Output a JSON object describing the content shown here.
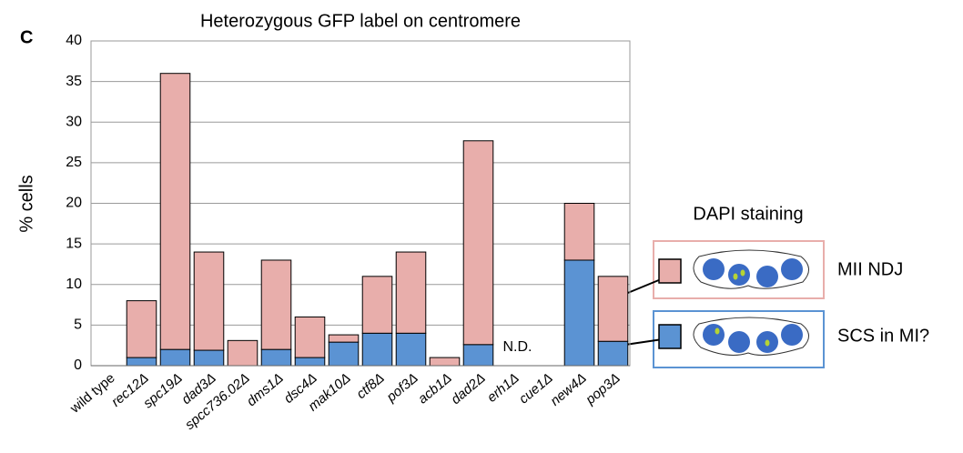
{
  "panel_label": "C",
  "chart_data": {
    "type": "stacked-bar",
    "title": "Heterozygous GFP label on centromere",
    "y_label": "% cells",
    "categories": [
      "wild type",
      "rec12Δ",
      "spc19Δ",
      "dad3Δ",
      "spcc736.02Δ",
      "dms1Δ",
      "dsc4Δ",
      "mak10Δ",
      "ctf8Δ",
      "pof3Δ",
      "acb1Δ",
      "dad2Δ",
      "erh1Δ",
      "cue1Δ",
      "new4Δ",
      "pop3Δ"
    ],
    "series": [
      {
        "name": "SCS in MI?",
        "color": "#5b93d3",
        "values": [
          0,
          1,
          2,
          1.9,
          0,
          2,
          1,
          2.9,
          4,
          4,
          0,
          2.6,
          null,
          0,
          13,
          3
        ]
      },
      {
        "name": "MII NDJ",
        "color": "#e8aeab",
        "values": [
          0,
          7,
          34,
          12.1,
          3.1,
          11,
          5,
          0.9,
          7,
          10,
          1,
          25.1,
          null,
          0,
          7,
          8
        ]
      }
    ],
    "ylim": [
      0,
      40
    ],
    "yticks": [
      0,
      5,
      10,
      15,
      20,
      25,
      30,
      35,
      40
    ],
    "grid": true,
    "annotations": [
      {
        "text": "N.D.",
        "category": 12
      }
    ],
    "legend_title": "DAPI staining"
  }
}
